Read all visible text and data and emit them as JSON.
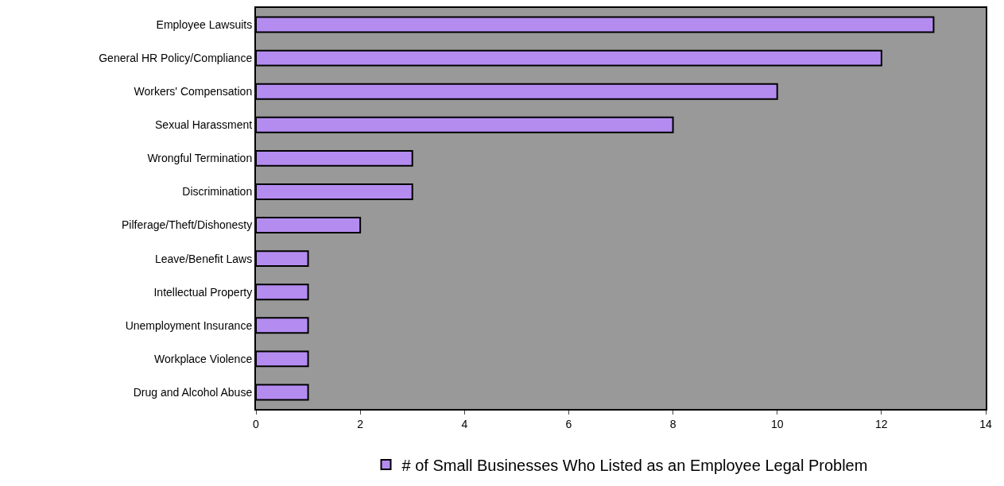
{
  "chart_data": {
    "type": "bar",
    "orientation": "horizontal",
    "categories": [
      "Employee Lawsuits",
      "General HR Policy/Compliance",
      "Workers' Compensation",
      "Sexual Harassment",
      "Wrongful Termination",
      "Discrimination",
      "Pilferage/Theft/Dishonesty",
      "Leave/Benefit Laws",
      "Intellectual Property",
      "Unemployment Insurance",
      "Workplace Violence",
      "Drug and Alcohol Abuse"
    ],
    "series": [
      {
        "name": "# of Small Businesses Who Listed as an Employee Legal Problem",
        "color": "#b48cf0",
        "values": [
          13,
          12,
          10,
          8,
          3,
          3,
          2,
          1,
          1,
          1,
          1,
          1
        ]
      }
    ],
    "xlim": [
      0,
      14
    ],
    "xticks": [
      0,
      2,
      4,
      6,
      8,
      10,
      12,
      14
    ],
    "grid": false,
    "legend": "bottom"
  }
}
